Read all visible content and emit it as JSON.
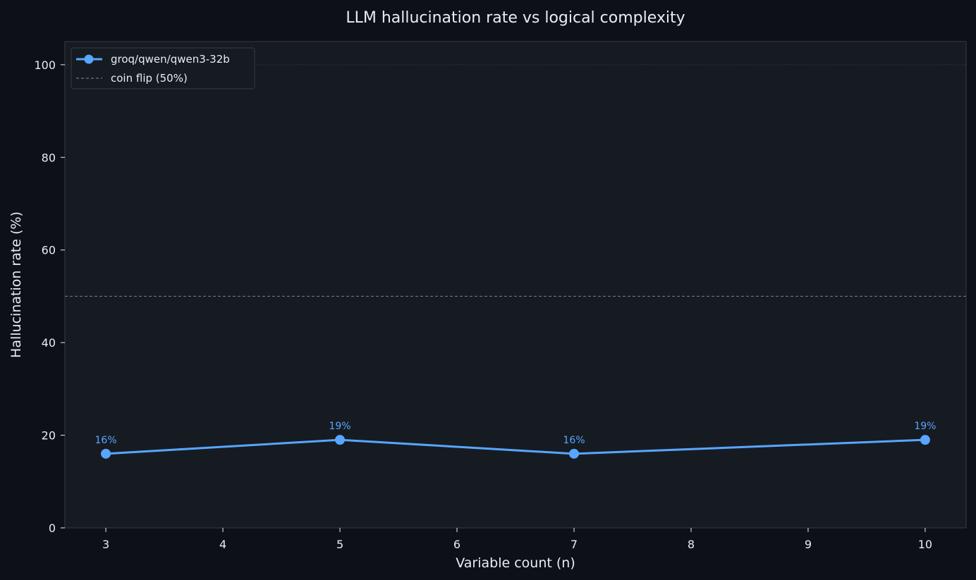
{
  "chart_data": {
    "type": "line",
    "title": "LLM hallucination rate vs logical complexity",
    "xlabel": "Variable count (n)",
    "ylabel": "Hallucination rate (%)",
    "xlim": [
      2.65,
      10.35
    ],
    "ylim": [
      0,
      105
    ],
    "x_ticks": [
      3,
      4,
      5,
      6,
      7,
      8,
      9,
      10
    ],
    "y_ticks": [
      0,
      20,
      40,
      60,
      80,
      100
    ],
    "grid": false,
    "legend_position": "top-left",
    "series": [
      {
        "name": "groq/qwen/qwen3-32b",
        "color": "#58a6ff",
        "x": [
          3,
          5,
          7,
          10
        ],
        "y": [
          16,
          19,
          16,
          19
        ],
        "labels": [
          "16%",
          "19%",
          "16%",
          "19%"
        ]
      }
    ],
    "reference_lines": [
      {
        "name": "coin flip (50%)",
        "y": 50,
        "style": "dashed",
        "color": "#6e7681"
      },
      {
        "y": 100,
        "style": "dotted",
        "color": "#30363d"
      }
    ]
  },
  "colors": {
    "page_background": "#0d1117",
    "plot_background": "#161b22",
    "axes_edge": "#30363d",
    "text": "#e6edf3"
  }
}
